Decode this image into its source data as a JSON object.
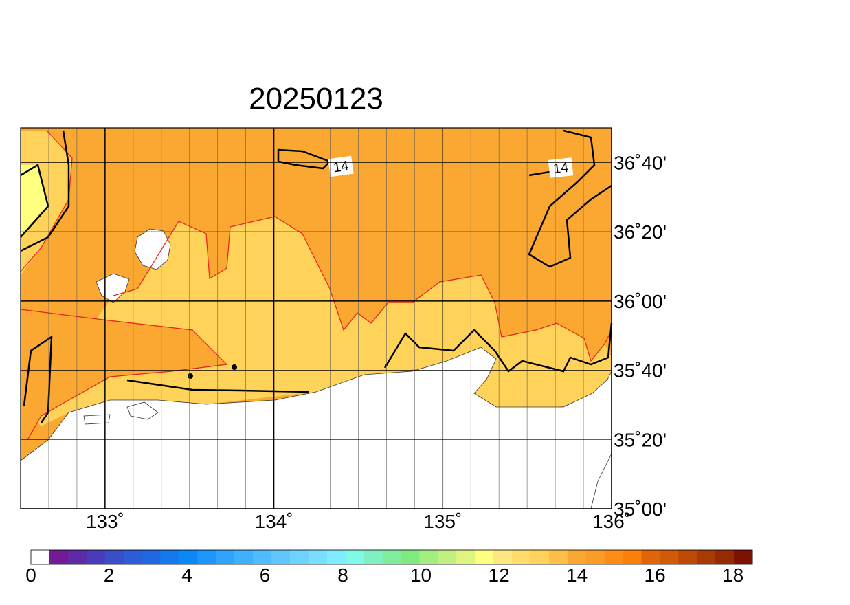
{
  "title": "20250123",
  "map": {
    "xlim": [
      132.5,
      136
    ],
    "ylim": [
      35,
      36.8333
    ],
    "xticks": [
      {
        "value": 133,
        "label": "133˚"
      },
      {
        "value": 134,
        "label": "134˚"
      },
      {
        "value": 135,
        "label": "135˚"
      },
      {
        "value": 136,
        "label": "136˚"
      }
    ],
    "yticks": [
      {
        "value": 35,
        "label": "35˚00'"
      },
      {
        "value": 35.3333,
        "label": "35˚20'"
      },
      {
        "value": 35.6667,
        "label": "35˚40'"
      },
      {
        "value": 36,
        "label": "36˚00'"
      },
      {
        "value": 36.3333,
        "label": "36˚20'"
      },
      {
        "value": 36.6667,
        "label": "36˚40'"
      }
    ],
    "contour_labels": [
      "14",
      "14"
    ]
  },
  "colorbar": {
    "range": [
      0,
      18.5
    ],
    "ticks": [
      0,
      2,
      4,
      6,
      8,
      10,
      12,
      14,
      16,
      18
    ],
    "colors": [
      "#ffffff",
      "#731a96",
      "#5e2aa6",
      "#4a3cb8",
      "#3a4ec8",
      "#2c5cd6",
      "#2068e2",
      "#137aee",
      "#0a88fa",
      "#1c96fc",
      "#2ea4fd",
      "#3eb0fe",
      "#50bcff",
      "#60c6ff",
      "#6ed2ff",
      "#7adeff",
      "#80ecff",
      "#80fae8",
      "#80f0c4",
      "#80ec9c",
      "#80ea80",
      "#a2ee80",
      "#c2f080",
      "#e0f480",
      "#ffff80",
      "#ffe882",
      "#ffdc6c",
      "#ffd25a",
      "#fcc04a",
      "#faa832",
      "#fb9c28",
      "#fc8c14",
      "#fc8008",
      "#e06408",
      "#d05a06",
      "#bc4a04",
      "#a83a04",
      "#962a02",
      "#7e1000"
    ]
  }
}
